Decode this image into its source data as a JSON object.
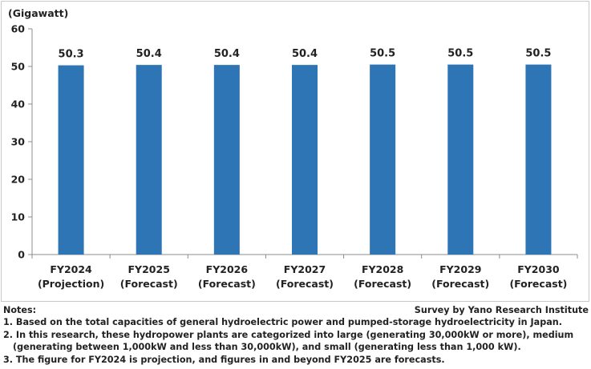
{
  "chart_data": {
    "type": "bar",
    "unit_label": "(Gigawatt)",
    "categories": [
      [
        "FY2024",
        "(Projection)"
      ],
      [
        "FY2025",
        "(Forecast)"
      ],
      [
        "FY2026",
        "(Forecast)"
      ],
      [
        "FY2027",
        "(Forecast)"
      ],
      [
        "FY2028",
        "(Forecast)"
      ],
      [
        "FY2029",
        "(Forecast)"
      ],
      [
        "FY2030",
        "(Forecast)"
      ]
    ],
    "values": [
      50.3,
      50.4,
      50.4,
      50.4,
      50.5,
      50.5,
      50.5
    ],
    "ylim": [
      0,
      60
    ],
    "yticks": [
      0,
      10,
      20,
      30,
      40,
      50,
      60
    ],
    "grid": false,
    "legend": "none",
    "bar_color": "#2e75b6"
  },
  "notes": {
    "heading": "Notes:",
    "source": "Survey by Yano Research Institute",
    "items": [
      "1. Based on the total capacities of general hydroelectric power and pumped-storage hydroelectricity in Japan.",
      "2. In this research, these hydropower plants are categorized into large (generating 30,000kW or more), medium",
      "(generating between 1,000kW and less than 30,000kW), and small (generating less than 1,000 kW).",
      "3. The figure for FY2024 is projection, and figures in and beyond FY2025 are forecasts."
    ]
  }
}
